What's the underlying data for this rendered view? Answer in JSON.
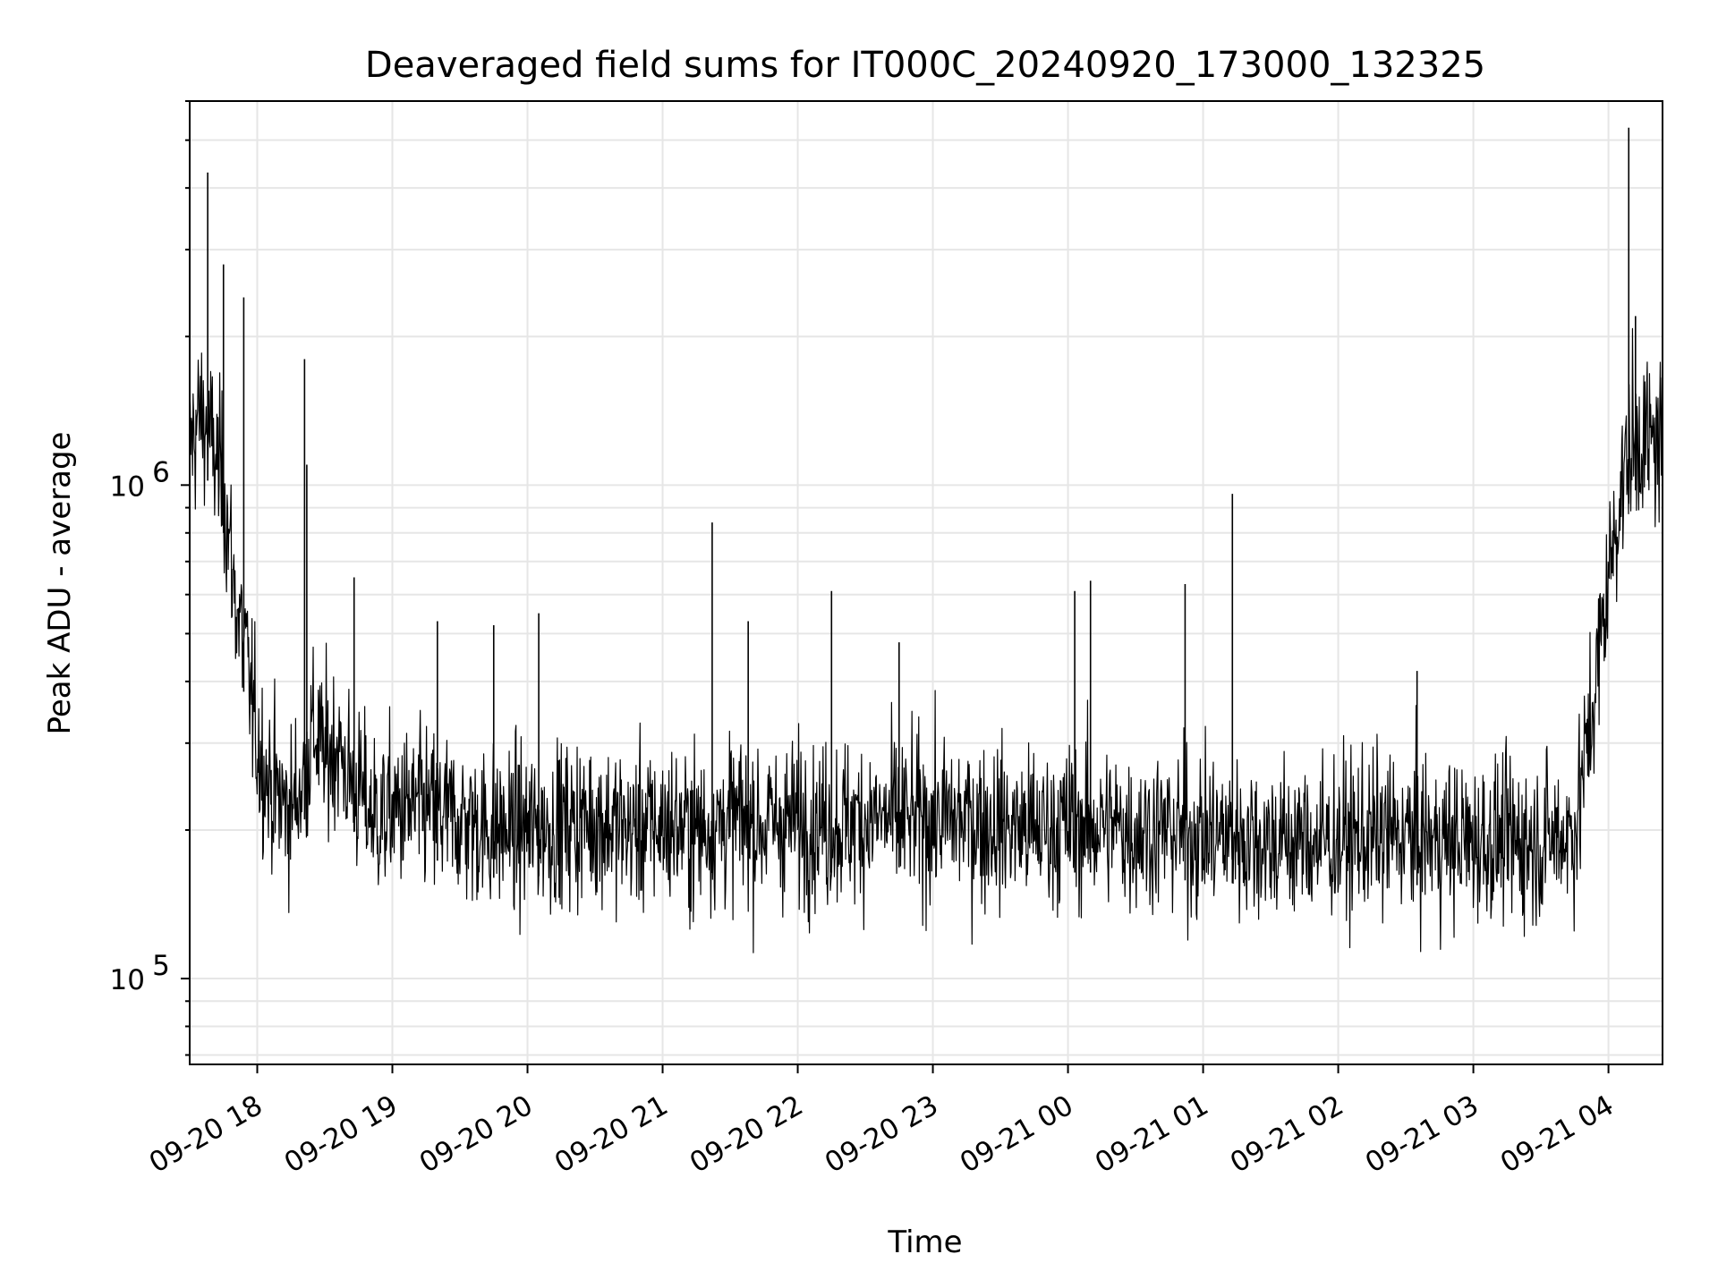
{
  "chart_data": {
    "type": "line",
    "title": "Deaveraged field sums for IT000C_20240920_173000_132325",
    "xlabel": "Time",
    "ylabel": "Peak ADU - average",
    "y_scale": "log",
    "ylim": [
      67000,
      6000000
    ],
    "xlim": [
      "2024-09-20 17:30",
      "2024-09-21 04:24"
    ],
    "x_ticks": [
      "09-20 18",
      "09-20 19",
      "09-20 20",
      "09-20 21",
      "09-20 22",
      "09-20 23",
      "09-21 00",
      "09-21 01",
      "09-21 02",
      "09-21 03",
      "09-21 04"
    ],
    "y_ticks": [
      {
        "base": "10",
        "exp": "5",
        "value": 100000
      },
      {
        "base": "10",
        "exp": "6",
        "value": 1000000
      }
    ],
    "grid": true,
    "line_color": "#000000",
    "grid_color": "#e6e6e6",
    "series": [
      {
        "x": [
          "2024-09-20 17:30",
          "2024-09-20 17:35",
          "2024-09-20 17:40",
          "2024-09-20 17:45",
          "2024-09-20 17:50",
          "2024-09-20 17:55",
          "2024-09-20 18:00",
          "2024-09-20 18:05",
          "2024-09-20 18:10",
          "2024-09-20 18:15",
          "2024-09-20 18:20",
          "2024-09-20 18:25",
          "2024-09-20 18:30",
          "2024-09-20 18:35",
          "2024-09-20 18:40",
          "2024-09-20 18:45",
          "2024-09-20 18:50",
          "2024-09-20 18:55",
          "2024-09-20 19:00",
          "2024-09-20 19:15",
          "2024-09-20 19:30",
          "2024-09-20 19:45",
          "2024-09-20 20:00",
          "2024-09-20 20:15",
          "2024-09-20 20:30",
          "2024-09-20 20:45",
          "2024-09-20 21:00",
          "2024-09-20 21:15",
          "2024-09-20 21:30",
          "2024-09-20 21:45",
          "2024-09-20 22:00",
          "2024-09-20 22:15",
          "2024-09-20 22:30",
          "2024-09-20 22:45",
          "2024-09-20 23:00",
          "2024-09-20 23:15",
          "2024-09-20 23:30",
          "2024-09-20 23:45",
          "2024-09-21 00:00",
          "2024-09-21 00:15",
          "2024-09-21 00:30",
          "2024-09-21 00:45",
          "2024-09-21 01:00",
          "2024-09-21 01:15",
          "2024-09-21 01:30",
          "2024-09-21 01:45",
          "2024-09-21 02:00",
          "2024-09-21 02:15",
          "2024-09-21 02:30",
          "2024-09-21 02:45",
          "2024-09-21 03:00",
          "2024-09-21 03:15",
          "2024-09-21 03:30",
          "2024-09-21 03:45",
          "2024-09-21 03:50",
          "2024-09-21 03:55",
          "2024-09-21 04:00",
          "2024-09-21 04:05",
          "2024-09-21 04:10",
          "2024-09-21 04:15",
          "2024-09-21 04:20",
          "2024-09-21 04:24"
        ],
        "y": [
          1200000,
          1400000,
          1200000,
          1000000,
          600000,
          450000,
          300000,
          250000,
          230000,
          220000,
          250000,
          320000,
          280000,
          300000,
          260000,
          240000,
          220000,
          210000,
          220000,
          220000,
          210000,
          200000,
          200000,
          205000,
          210000,
          200000,
          205000,
          200000,
          210000,
          205000,
          210000,
          205000,
          210000,
          210000,
          210000,
          210000,
          205000,
          200000,
          205000,
          205000,
          200000,
          200000,
          195000,
          195000,
          190000,
          190000,
          190000,
          195000,
          195000,
          190000,
          190000,
          190000,
          190000,
          200000,
          280000,
          420000,
          650000,
          950000,
          1200000,
          1250000,
          1200000,
          1250000
        ],
        "spikes": [
          {
            "x": "2024-09-20 17:38",
            "y": 4300000
          },
          {
            "x": "2024-09-20 17:45",
            "y": 2800000
          },
          {
            "x": "2024-09-20 17:54",
            "y": 2400000
          },
          {
            "x": "2024-09-20 18:21",
            "y": 1800000
          },
          {
            "x": "2024-09-20 18:22",
            "y": 1100000
          },
          {
            "x": "2024-09-20 18:43",
            "y": 650000
          },
          {
            "x": "2024-09-20 19:20",
            "y": 530000
          },
          {
            "x": "2024-09-20 19:45",
            "y": 520000
          },
          {
            "x": "2024-09-20 20:05",
            "y": 550000
          },
          {
            "x": "2024-09-20 21:22",
            "y": 840000
          },
          {
            "x": "2024-09-20 21:38",
            "y": 530000
          },
          {
            "x": "2024-09-20 22:15",
            "y": 610000
          },
          {
            "x": "2024-09-20 22:45",
            "y": 480000
          },
          {
            "x": "2024-09-21 00:03",
            "y": 610000
          },
          {
            "x": "2024-09-21 00:10",
            "y": 640000
          },
          {
            "x": "2024-09-21 00:52",
            "y": 630000
          },
          {
            "x": "2024-09-21 01:13",
            "y": 960000
          },
          {
            "x": "2024-09-21 02:35",
            "y": 420000
          },
          {
            "x": "2024-09-21 04:09",
            "y": 5300000
          },
          {
            "x": "2024-09-21 04:12",
            "y": 2200000
          }
        ]
      }
    ]
  }
}
